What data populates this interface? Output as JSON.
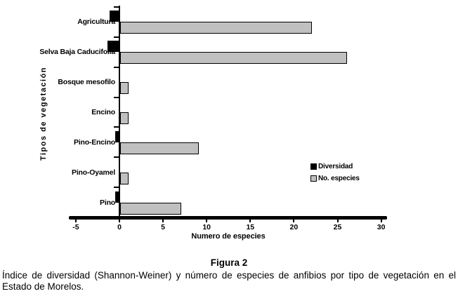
{
  "figure": {
    "caption_title": "Figura 2",
    "caption_line1": "Índice de diversidad (Shannon-Weiner) y número de especies de anfibios por tipo de vegetación en el",
    "caption_line2": "Estado de Morelos."
  },
  "chart_data": {
    "type": "bar",
    "orientation": "horizontal",
    "title": "",
    "xlabel": "Numero de especies",
    "ylabel": "Tipos de vegetación",
    "categories": [
      "Agricultura",
      "Selva Baja Caducifolia",
      "Bosque mesofilo",
      "Encino",
      "Pino-Encino",
      "Pino-Oyamel",
      "Pino"
    ],
    "series": [
      {
        "name": "Diversidad",
        "color": "#000000",
        "values": [
          -1.1,
          -1.4,
          0,
          0,
          -0.5,
          0,
          -0.5
        ]
      },
      {
        "name": "No. especies",
        "color": "#c0c0c0",
        "values": [
          22,
          26,
          1,
          1,
          9,
          1,
          7
        ]
      }
    ],
    "xlim": [
      -5,
      30
    ],
    "xticks": [
      "-5",
      "0",
      "5",
      "10",
      "15",
      "20",
      "25",
      "30"
    ],
    "grid": false,
    "legend_position": "middle-right",
    "note": "Diversidad bars are drawn extending left of the zero axis; No. especies bars extend right"
  }
}
